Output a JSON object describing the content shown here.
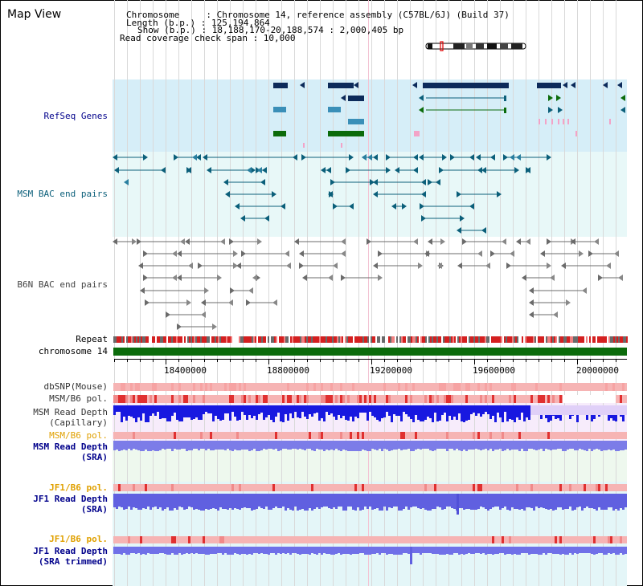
{
  "map_title": "Map View",
  "header": {
    "chromosome_label": "Chromosome     : Chromosome 14, reference assembly (C57BL/6J) (Build 37)",
    "length_label": "Length (b.p.) : 125,194,864",
    "show_label": "Show (b.p.) : 18,188,170-20,188,574 : 2,000,405 bp",
    "span_label": "Read coverage check span : 10,000"
  },
  "tracks": {
    "refseq": "RefSeq Genes",
    "msm_bac": "MSM BAC end pairs",
    "b6n_bac": "B6N BAC end pairs",
    "repeat": "Repeat",
    "chromosome": "chromosome 14",
    "dbsnp": "dbSNP(Mouse)",
    "msm_b6_pol": "MSM/B6 pol.",
    "msm_depth_cap": "MSM Read Depth\n(Capillary)",
    "msm_b6_pol2": "MSM/B6 pol.",
    "msm_depth_sra": "MSM Read Depth\n(SRA)",
    "jf1_b6_pol": "JF1/B6 pol.",
    "jf1_depth_sra": "JF1 Read Depth\n(SRA)",
    "jf1_b6_pol2": "JF1/B6 pol.",
    "jf1_depth_trim": "JF1 Read Depth\n(SRA trimmed)"
  },
  "axis_ticks": [
    "18400000",
    "18800000",
    "19200000",
    "19600000",
    "20000000"
  ],
  "colors": {
    "refseq_bg": "#d6eef8",
    "msm_bg": "#e8f8f8",
    "navy": "#0c2a5a",
    "teal": "#0b5f7a",
    "green": "#0b6b0b",
    "pink": "#f3a3c7",
    "gray": "#6b6b6b",
    "depth_blue": "#2a2ae0",
    "depth_light": "#6a6ae8",
    "pol_pink": "#f6b4b4",
    "pol_red": "#e03030",
    "label_orange": "#e0a000",
    "label_blue": "#00008b"
  }
}
